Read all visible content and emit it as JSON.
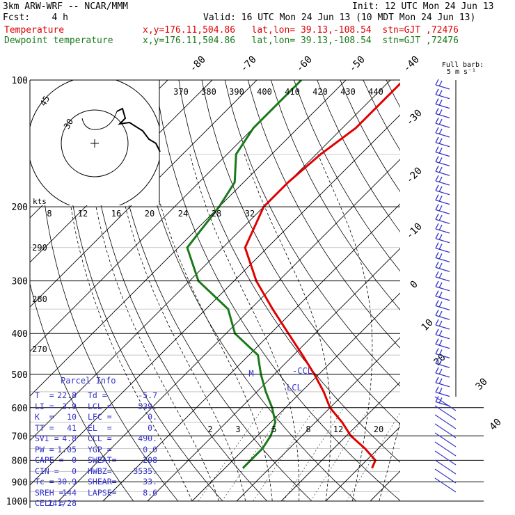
{
  "header": {
    "model": "3km ARW-WRF -- NCAR/MMM",
    "init": "Init: 12 UTC Mon 24 Jun 13",
    "fcst": "Fcst:    4 h",
    "valid": "Valid: 16 UTC Mon 24 Jun 13 (10 MDT Mon 24 Jun 13)",
    "temp_label": "Temperature",
    "temp_info": "x,y=176.11,504.86   lat,lon= 39.13,-108.54  stn=GJT ,72476",
    "dew_label": "Dewpoint temperature",
    "dew_info": "x,y=176.11,504.86   lat,lon= 39.13,-108.54  stn=GJT ,72476"
  },
  "colors": {
    "temperature": "#e00000",
    "dewpoint": "#1a7a1a",
    "parcel": "#3333cc",
    "grid": "#000000"
  },
  "chart_data": {
    "type": "line",
    "pressure_ticks": [
      "100",
      "200",
      "300",
      "400",
      "500",
      "600",
      "700",
      "800",
      "900",
      "1000"
    ],
    "isotherm_labels": [
      "-80",
      "-70",
      "-60",
      "-50",
      "-40",
      "-30",
      "-20",
      "-10",
      "0",
      "10",
      "20",
      "30",
      "40"
    ],
    "theta_labels_upper": [
      "370",
      "380",
      "390",
      "400",
      "410",
      "420",
      "430",
      "440"
    ],
    "theta_labels_left": [
      "290",
      "280",
      "270"
    ],
    "hodograph_speed_labels": [
      "8",
      "12",
      "16",
      "20",
      "24",
      "28",
      "32"
    ],
    "hodograph_unit": "kts",
    "hodograph_ring_labels": [
      "45",
      "30"
    ],
    "mixing_ratio_labels": [
      "2",
      "3",
      "5",
      "8",
      "12",
      "20"
    ],
    "full_barb_label": "Full barb:",
    "full_barb_value": "5 m s⁻¹",
    "markers": {
      "ccl": "-CCL",
      "lcl": "LCL",
      "m": "M"
    },
    "series": [
      {
        "name": "Temperature",
        "points": [
          [
            100,
            -57
          ],
          [
            130,
            -57
          ],
          [
            150,
            -59
          ],
          [
            175,
            -60
          ],
          [
            200,
            -60
          ],
          [
            250,
            -55
          ],
          [
            300,
            -45
          ],
          [
            350,
            -35
          ],
          [
            400,
            -26
          ],
          [
            450,
            -18
          ],
          [
            500,
            -11
          ],
          [
            550,
            -5
          ],
          [
            600,
            0
          ],
          [
            650,
            6
          ],
          [
            700,
            11
          ],
          [
            750,
            17
          ],
          [
            800,
            22
          ],
          [
            835,
            23
          ]
        ]
      },
      {
        "name": "Dewpoint temperature",
        "points": [
          [
            100,
            -80
          ],
          [
            130,
            -80
          ],
          [
            150,
            -78
          ],
          [
            175,
            -72
          ],
          [
            200,
            -70
          ],
          [
            250,
            -68
          ],
          [
            300,
            -58
          ],
          [
            350,
            -45
          ],
          [
            400,
            -38
          ],
          [
            450,
            -28
          ],
          [
            500,
            -23
          ],
          [
            550,
            -18
          ],
          [
            600,
            -13
          ],
          [
            650,
            -9
          ],
          [
            700,
            -7
          ],
          [
            750,
            -6
          ],
          [
            790,
            -6
          ],
          [
            815,
            -6
          ],
          [
            835,
            -6
          ]
        ]
      }
    ]
  },
  "parcel": {
    "title": "Parcel Info",
    "rows": [
      [
        "T  =",
        "22.8",
        "Td =",
        "-5.7"
      ],
      [
        "LI =",
        "3.9",
        "LCL =",
        "539."
      ],
      [
        "K  =",
        "10",
        "LFC =",
        "0."
      ],
      [
        "TT =",
        "41",
        "EL  =",
        "0."
      ],
      [
        "SVI =",
        "4.8",
        "CCL =",
        "490."
      ],
      [
        "PW =",
        "1.05",
        "YGP =",
        "0.0"
      ],
      [
        "CAPE =",
        "0",
        "SWEAT=",
        "208"
      ],
      [
        "CIN =",
        "0",
        "HWBZ=",
        "3535."
      ],
      [
        "Tc =",
        "30.9",
        "SHEAR=",
        "33."
      ],
      [
        "SREH =",
        "144",
        "LAPSE=",
        "8.6"
      ],
      [
        "CELL =",
        "241/28",
        "",
        ""
      ]
    ]
  }
}
